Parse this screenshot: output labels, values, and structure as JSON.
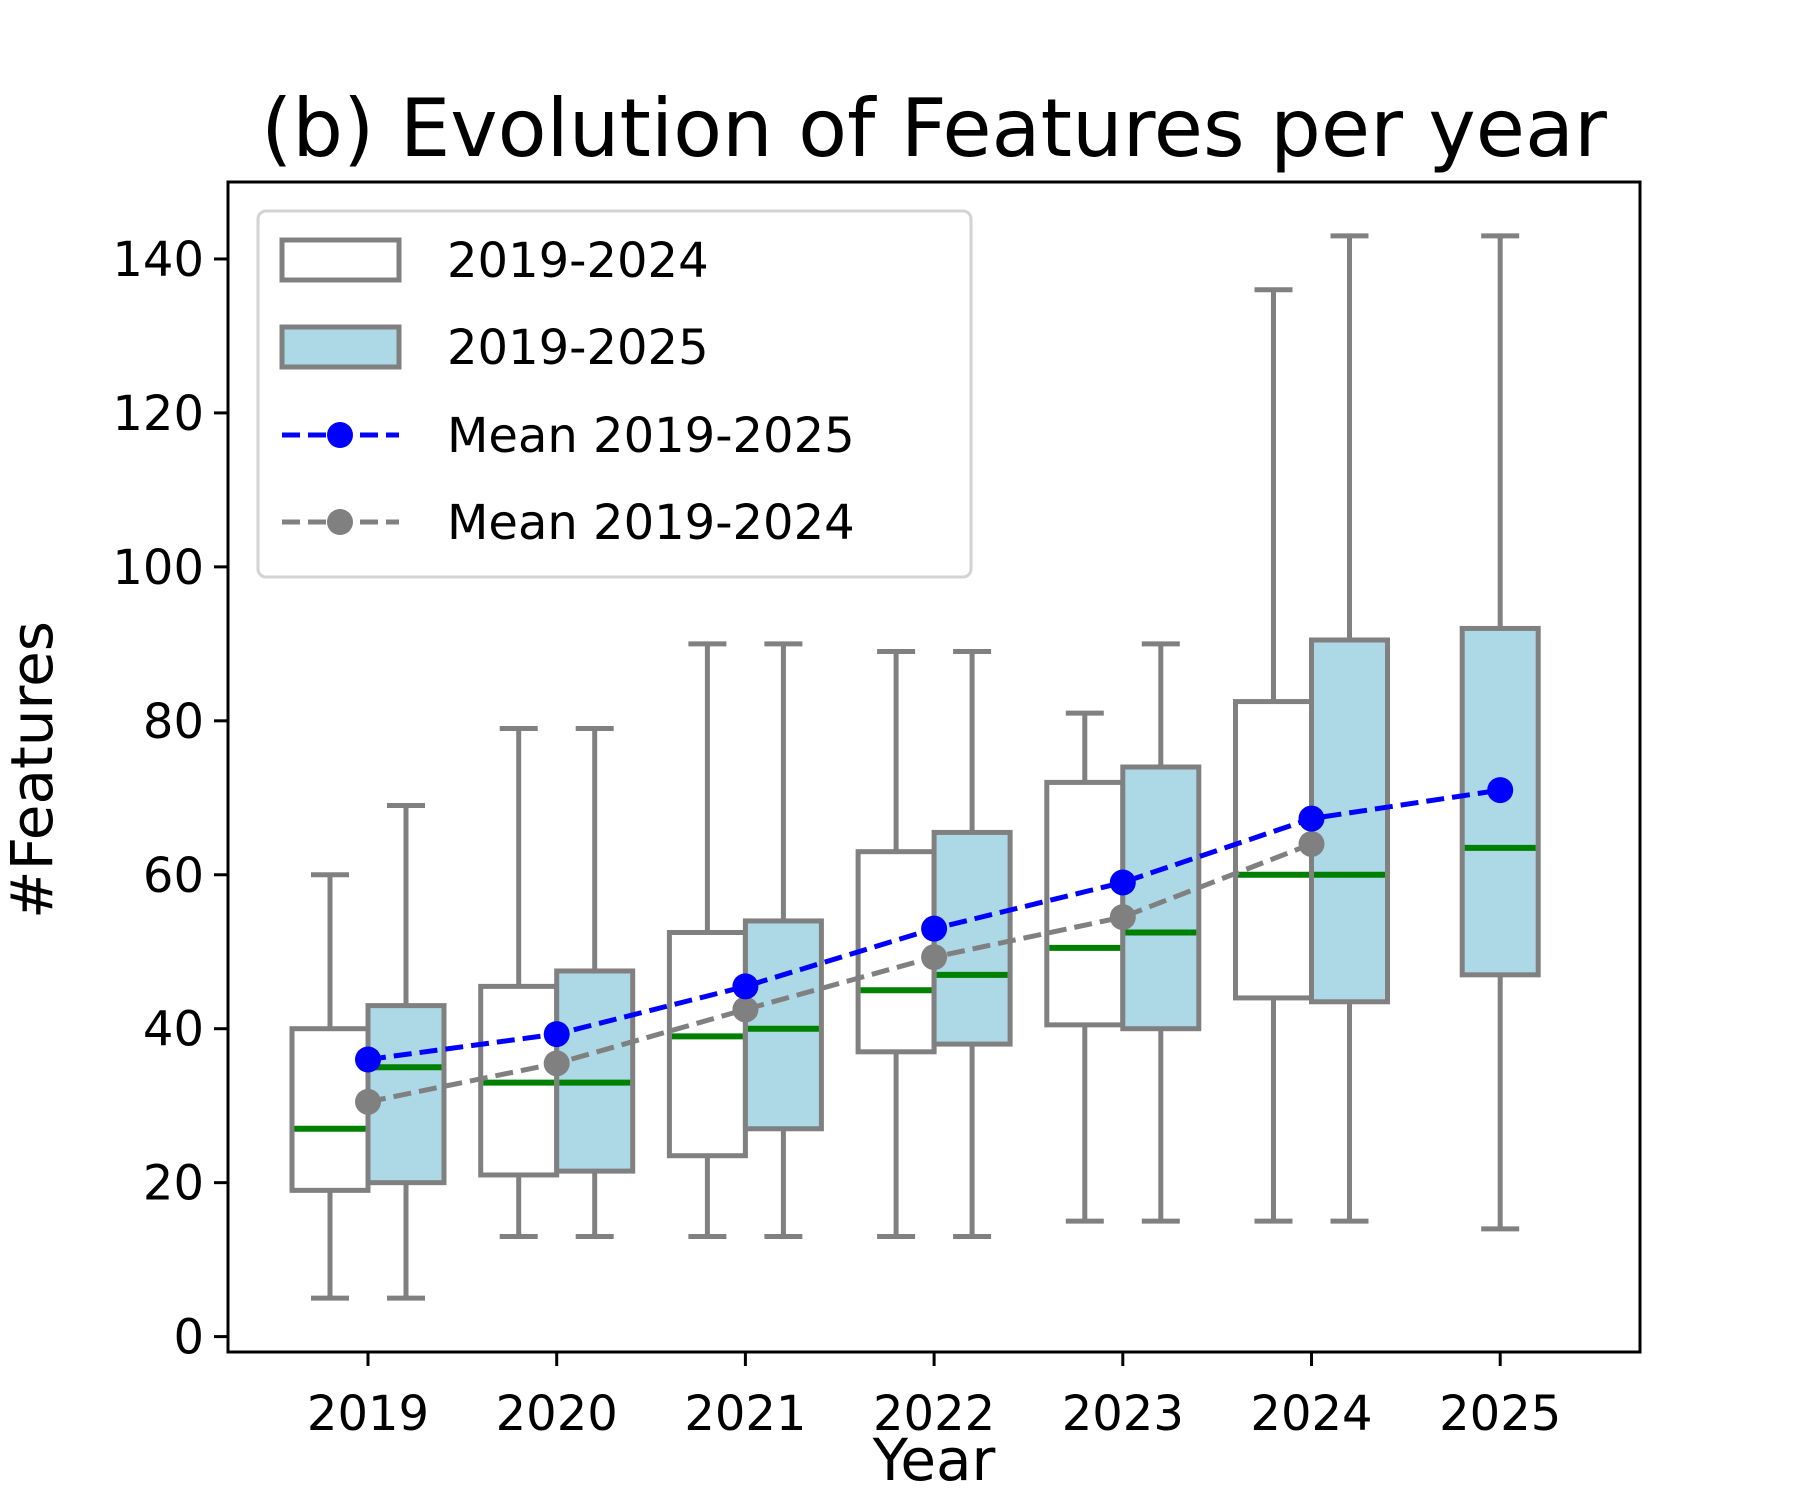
{
  "chart_data": {
    "type": "box",
    "title": "(b) Evolution of Features per year",
    "xlabel": "Year",
    "ylabel": "#Features",
    "ylim": [
      -2,
      150
    ],
    "yticks": [
      0,
      20,
      40,
      60,
      80,
      100,
      120,
      140
    ],
    "categories": [
      "2019",
      "2020",
      "2021",
      "2022",
      "2023",
      "2024",
      "2025"
    ],
    "grid": false,
    "legend": {
      "placement": "top-left",
      "entries": [
        "2019-2024",
        "2019-2025",
        "Mean 2019-2025",
        "Mean 2019-2024"
      ]
    },
    "series": [
      {
        "name": "2019-2024",
        "fill": "#ffffff",
        "edge": "#808080",
        "median_color": "#008000",
        "boxes": [
          {
            "x": "2019",
            "whisker_low": 5,
            "q1": 19,
            "median": 27,
            "q3": 40,
            "whisker_high": 60
          },
          {
            "x": "2020",
            "whisker_low": 13,
            "q1": 21,
            "median": 33,
            "q3": 45.5,
            "whisker_high": 79
          },
          {
            "x": "2021",
            "whisker_low": 13,
            "q1": 23.5,
            "median": 39,
            "q3": 52.5,
            "whisker_high": 90
          },
          {
            "x": "2022",
            "whisker_low": 13,
            "q1": 37,
            "median": 45,
            "q3": 63,
            "whisker_high": 89
          },
          {
            "x": "2023",
            "whisker_low": 15,
            "q1": 40.5,
            "median": 50.5,
            "q3": 72,
            "whisker_high": 81
          },
          {
            "x": "2024",
            "whisker_low": 15,
            "q1": 44,
            "median": 60,
            "q3": 82.5,
            "whisker_high": 136
          }
        ]
      },
      {
        "name": "2019-2025",
        "fill": "#add8e6",
        "edge": "#808080",
        "median_color": "#008000",
        "boxes": [
          {
            "x": "2019",
            "whisker_low": 5,
            "q1": 20,
            "median": 35,
            "q3": 43,
            "whisker_high": 69
          },
          {
            "x": "2020",
            "whisker_low": 13,
            "q1": 21.5,
            "median": 33,
            "q3": 47.5,
            "whisker_high": 79
          },
          {
            "x": "2021",
            "whisker_low": 13,
            "q1": 27,
            "median": 40,
            "q3": 54,
            "whisker_high": 90
          },
          {
            "x": "2022",
            "whisker_low": 13,
            "q1": 38,
            "median": 47,
            "q3": 65.5,
            "whisker_high": 89
          },
          {
            "x": "2023",
            "whisker_low": 15,
            "q1": 40,
            "median": 52.5,
            "q3": 74,
            "whisker_high": 90
          },
          {
            "x": "2024",
            "whisker_low": 15,
            "q1": 43.5,
            "median": 60,
            "q3": 90.5,
            "whisker_high": 143
          },
          {
            "x": "2025",
            "whisker_low": 14,
            "q1": 47,
            "median": 63.5,
            "q3": 92,
            "whisker_high": 143
          }
        ]
      }
    ],
    "lines": [
      {
        "name": "Mean 2019-2025",
        "color": "#0000ff",
        "style": "dashed",
        "x": [
          "2019",
          "2020",
          "2021",
          "2022",
          "2023",
          "2024",
          "2025"
        ],
        "y": [
          36,
          39.3,
          45.5,
          53,
          59,
          67.3,
          71
        ]
      },
      {
        "name": "Mean 2019-2024",
        "color": "#808080",
        "style": "dashed",
        "x": [
          "2019",
          "2020",
          "2021",
          "2022",
          "2023",
          "2024"
        ],
        "y": [
          30.5,
          35.5,
          42.5,
          49.3,
          54.5,
          64
        ]
      }
    ]
  }
}
